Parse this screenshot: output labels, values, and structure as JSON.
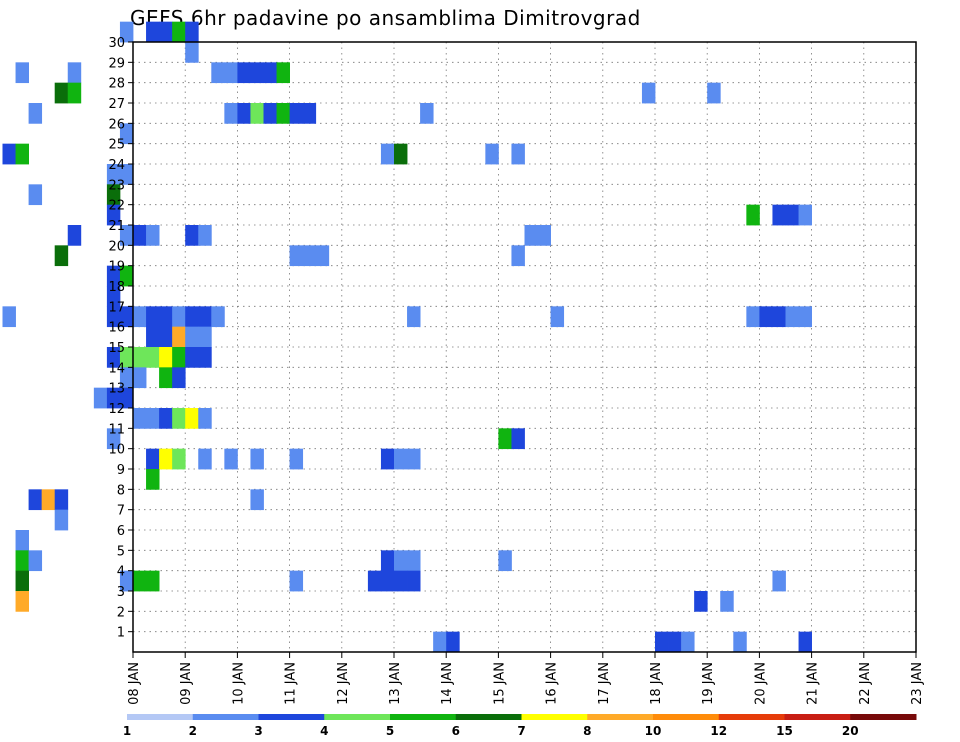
{
  "chart_data": {
    "type": "heatmap",
    "title": "GEFS 6hr padavine po ansamblima Dimitrovgrad",
    "xlabel": "",
    "ylabel": "",
    "x_tick_labels": [
      "08 JAN",
      "09 JAN",
      "10 JAN",
      "11 JAN",
      "12 JAN",
      "13 JAN",
      "14 JAN",
      "15 JAN",
      "16 JAN",
      "17 JAN",
      "18 JAN",
      "19 JAN",
      "20 JAN",
      "21 JAN",
      "22 JAN",
      "23 JAN"
    ],
    "y_tick_labels": [
      "1",
      "2",
      "3",
      "4",
      "5",
      "6",
      "7",
      "8",
      "9",
      "10",
      "11",
      "12",
      "13",
      "14",
      "15",
      "16",
      "17",
      "18",
      "19",
      "20",
      "21",
      "22",
      "23",
      "24",
      "25",
      "26",
      "27",
      "28",
      "29",
      "30"
    ],
    "x_range_days": [
      0,
      15
    ],
    "step_hours": 6,
    "grid": true,
    "legend_position": "bottom",
    "color_levels": {
      "labels": [
        "1",
        "2",
        "3",
        "4",
        "5",
        "6",
        "7",
        "8",
        "10",
        "12",
        "15",
        "20"
      ],
      "colors": [
        "#b4c8f5",
        "#5a8cf0",
        "#1e46dc",
        "#1e46dc",
        "#6ee65a",
        "#10b410",
        "#0a6e0a",
        "#ffff00",
        "#ffaa28",
        "#ff8c0a",
        "#e63c0a",
        "#961e14"
      ],
      "bar_colors": [
        "#b4c8f5",
        "#5a8cf0",
        "#1e46dc",
        "#6ee65a",
        "#10b410",
        "#0a6e0a",
        "#ffff00",
        "#ffaa28",
        "#ff8c0a",
        "#e63c0a",
        "#c81e14",
        "#780a0a"
      ]
    },
    "cells": [
      [
        30,
        7.75,
        1
      ],
      [
        30,
        8.25,
        3
      ],
      [
        30,
        8.5,
        3
      ],
      [
        30,
        8.75,
        5
      ],
      [
        30,
        9.0,
        3
      ],
      [
        29,
        9.0,
        1
      ],
      [
        28,
        5.75,
        1
      ],
      [
        28,
        6.75,
        1
      ],
      [
        28,
        9.5,
        1
      ],
      [
        28,
        9.75,
        1
      ],
      [
        28,
        10.0,
        2
      ],
      [
        28,
        10.25,
        3
      ],
      [
        28,
        10.5,
        3
      ],
      [
        28,
        10.75,
        5
      ],
      [
        27,
        6.5,
        6
      ],
      [
        27,
        6.75,
        5
      ],
      [
        27,
        17.75,
        1
      ],
      [
        27,
        19.0,
        1
      ],
      [
        26,
        6.0,
        1
      ],
      [
        26,
        9.75,
        1
      ],
      [
        26,
        10.0,
        2
      ],
      [
        26,
        10.25,
        4
      ],
      [
        26,
        10.5,
        3
      ],
      [
        26,
        10.75,
        5
      ],
      [
        26,
        11.0,
        3
      ],
      [
        26,
        11.25,
        2
      ],
      [
        26,
        13.5,
        1
      ],
      [
        25,
        7.75,
        1
      ],
      [
        24,
        5.5,
        2
      ],
      [
        24,
        5.75,
        5
      ],
      [
        24,
        12.75,
        1
      ],
      [
        24,
        13.0,
        6
      ],
      [
        24,
        14.75,
        1
      ],
      [
        24,
        15.25,
        1
      ],
      [
        23,
        7.5,
        1
      ],
      [
        23,
        7.75,
        1
      ],
      [
        22,
        6.0,
        1
      ],
      [
        22,
        7.5,
        6
      ],
      [
        21,
        7.5,
        2
      ],
      [
        21,
        19.75,
        5
      ],
      [
        21,
        20.25,
        2
      ],
      [
        21,
        20.5,
        2
      ],
      [
        21,
        20.75,
        1
      ],
      [
        20,
        6.75,
        2
      ],
      [
        20,
        7.75,
        1
      ],
      [
        20,
        8.0,
        2
      ],
      [
        20,
        8.25,
        1
      ],
      [
        20,
        9.0,
        3
      ],
      [
        20,
        9.25,
        1
      ],
      [
        20,
        15.5,
        1
      ],
      [
        20,
        15.75,
        1
      ],
      [
        19,
        6.5,
        6
      ],
      [
        19,
        11.0,
        1
      ],
      [
        19,
        11.25,
        1
      ],
      [
        19,
        11.5,
        1
      ],
      [
        19,
        15.25,
        1
      ],
      [
        18,
        7.5,
        3
      ],
      [
        18,
        7.75,
        5
      ],
      [
        17,
        7.5,
        3
      ],
      [
        16,
        5.5,
        1
      ],
      [
        16,
        7.5,
        3
      ],
      [
        16,
        7.75,
        2
      ],
      [
        16,
        8.0,
        1
      ],
      [
        16,
        8.25,
        2
      ],
      [
        16,
        8.5,
        2
      ],
      [
        16,
        8.75,
        1
      ],
      [
        16,
        9.0,
        2
      ],
      [
        16,
        9.25,
        3
      ],
      [
        16,
        9.5,
        1
      ],
      [
        16,
        13.25,
        1
      ],
      [
        16,
        16.0,
        1
      ],
      [
        16,
        19.75,
        1
      ],
      [
        16,
        20.0,
        3
      ],
      [
        16,
        20.25,
        2
      ],
      [
        16,
        20.5,
        1
      ],
      [
        16,
        20.75,
        1
      ],
      [
        15,
        8.25,
        2
      ],
      [
        15,
        8.5,
        2
      ],
      [
        15,
        8.75,
        8
      ],
      [
        15,
        9.0,
        1
      ],
      [
        15,
        9.25,
        1
      ],
      [
        14,
        7.5,
        3
      ],
      [
        14,
        7.75,
        4
      ],
      [
        14,
        8.0,
        4
      ],
      [
        14,
        8.25,
        4
      ],
      [
        14,
        8.5,
        7
      ],
      [
        14,
        8.75,
        5
      ],
      [
        14,
        9.0,
        2
      ],
      [
        14,
        9.25,
        2
      ],
      [
        13,
        7.75,
        1
      ],
      [
        13,
        8.0,
        1
      ],
      [
        13,
        8.5,
        5
      ],
      [
        13,
        8.75,
        3
      ],
      [
        12,
        7.25,
        1
      ],
      [
        12,
        7.5,
        3
      ],
      [
        12,
        7.75,
        3
      ],
      [
        11,
        8.0,
        1
      ],
      [
        11,
        8.25,
        1
      ],
      [
        11,
        8.5,
        3
      ],
      [
        11,
        8.75,
        4
      ],
      [
        11,
        9.0,
        7
      ],
      [
        11,
        9.25,
        1
      ],
      [
        10,
        7.5,
        1
      ],
      [
        10,
        15.0,
        5
      ],
      [
        10,
        15.25,
        2
      ],
      [
        9,
        8.25,
        3
      ],
      [
        9,
        8.5,
        7
      ],
      [
        9,
        8.75,
        4
      ],
      [
        9,
        9.25,
        1
      ],
      [
        9,
        9.75,
        1
      ],
      [
        9,
        10.25,
        1
      ],
      [
        9,
        11.0,
        1
      ],
      [
        9,
        12.75,
        2
      ],
      [
        9,
        13.0,
        1
      ],
      [
        9,
        13.25,
        1
      ],
      [
        8,
        8.25,
        5
      ],
      [
        7,
        6.0,
        3
      ],
      [
        7,
        6.25,
        8
      ],
      [
        7,
        6.5,
        2
      ],
      [
        7,
        10.25,
        1
      ],
      [
        6,
        6.5,
        1
      ],
      [
        5,
        5.75,
        1
      ],
      [
        4,
        5.75,
        5
      ],
      [
        4,
        6.0,
        1
      ],
      [
        4,
        12.75,
        2
      ],
      [
        4,
        13.0,
        1
      ],
      [
        4,
        13.25,
        1
      ],
      [
        4,
        15.0,
        1
      ],
      [
        3,
        5.75,
        6
      ],
      [
        3,
        7.75,
        1
      ],
      [
        3,
        8.0,
        5
      ],
      [
        3,
        8.25,
        5
      ],
      [
        3,
        11.0,
        1
      ],
      [
        3,
        12.5,
        2
      ],
      [
        3,
        12.75,
        2
      ],
      [
        3,
        13.0,
        3
      ],
      [
        3,
        13.25,
        2
      ],
      [
        3,
        20.25,
        1
      ],
      [
        2,
        5.75,
        8
      ],
      [
        2,
        18.75,
        3
      ],
      [
        2,
        19.25,
        1
      ],
      [
        0,
        13.75,
        1
      ],
      [
        0,
        14.0,
        2
      ],
      [
        0,
        18.0,
        3
      ],
      [
        0,
        18.25,
        2
      ],
      [
        0,
        18.5,
        1
      ],
      [
        0,
        19.5,
        1
      ],
      [
        0,
        20.75,
        2
      ]
    ]
  }
}
